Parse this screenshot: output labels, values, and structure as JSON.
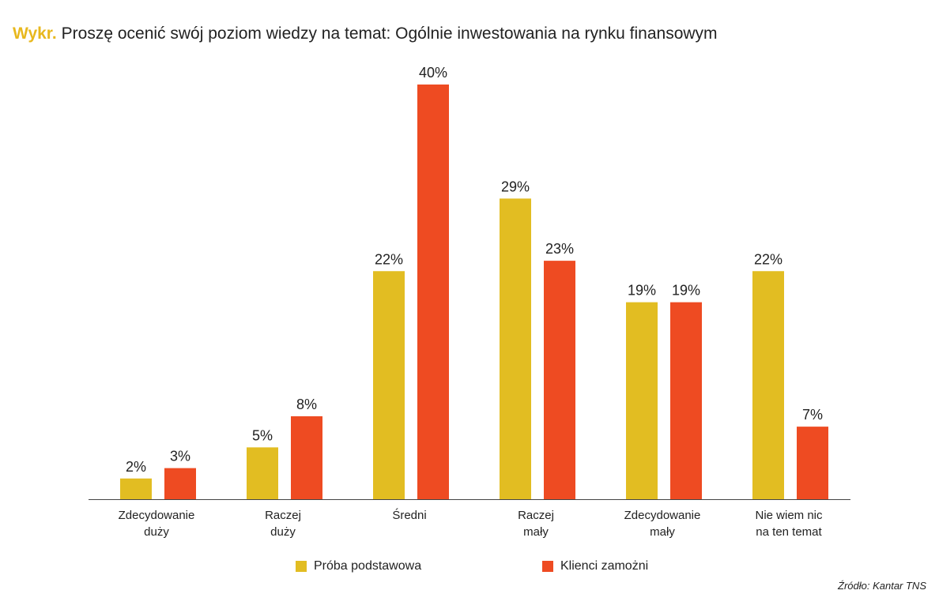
{
  "title": {
    "prefix": "Wykr.",
    "text": "Proszę ocenić swój poziom wiedzy na temat: Ogólnie inwestowania na rynku finansowym"
  },
  "colors": {
    "title_prefix": "#e8b81e",
    "series_1": "#e2bd22",
    "series_2": "#ee4b22",
    "text": "#222222",
    "axis": "#444444"
  },
  "chart_data": {
    "type": "bar",
    "categories": [
      [
        "Zdecydowanie",
        "duży"
      ],
      [
        "Raczej",
        "duży"
      ],
      [
        "Średni"
      ],
      [
        "Raczej",
        "mały"
      ],
      [
        "Zdecydowanie",
        "mały"
      ],
      [
        "Nie wiem nic",
        "na ten temat"
      ]
    ],
    "series": [
      {
        "name": "Próba podstawowa",
        "values": [
          2,
          5,
          22,
          29,
          19,
          22
        ],
        "labels": [
          "2%",
          "5%",
          "22%",
          "29%",
          "19%",
          "22%"
        ]
      },
      {
        "name": "Klienci zamożni",
        "values": [
          3,
          8,
          40,
          23,
          19,
          7
        ],
        "labels": [
          "3%",
          "8%",
          "40%",
          "23%",
          "19%",
          "7%"
        ]
      }
    ],
    "title": "Proszę ocenić swój poziom wiedzy na temat: Ogólnie inwestowania na rynku finansowym",
    "xlabel": "",
    "ylabel": "",
    "ylim": [
      0,
      40
    ],
    "grid": false,
    "legend": "bottom"
  },
  "legend": {
    "items": [
      "Próba podstawowa",
      "Klienci zamożni"
    ]
  },
  "source": "Źródło: Kantar TNS"
}
